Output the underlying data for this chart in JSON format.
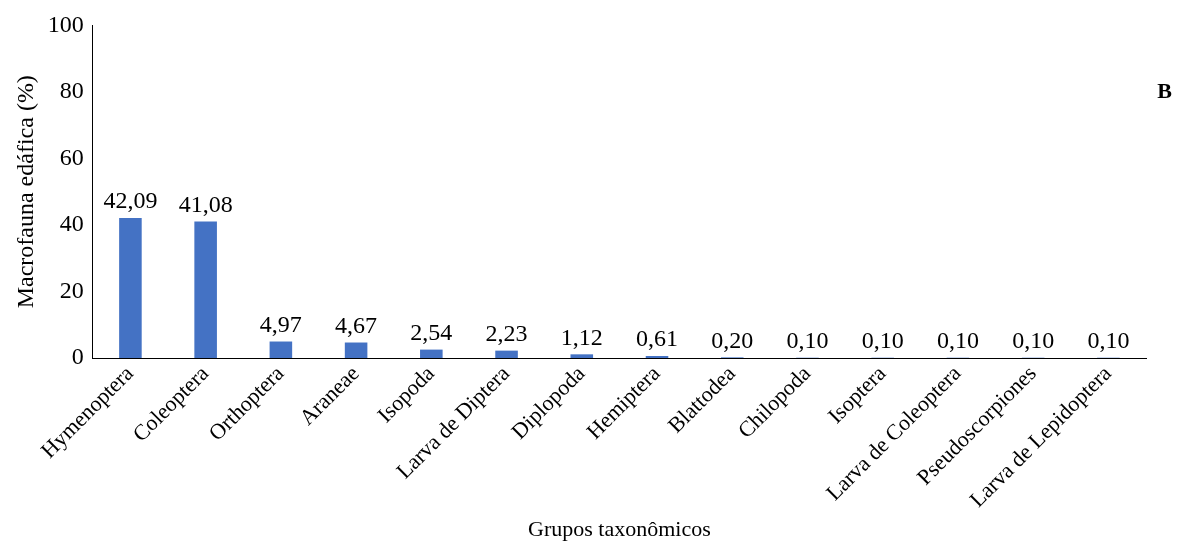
{
  "chart_data": {
    "type": "bar",
    "xlabel": "Grupos taxonômicos",
    "ylabel": "Macrofauna edáfica (%)",
    "annotations": [
      "B"
    ],
    "categories": [
      "Hymenoptera",
      "Coleoptera",
      "Orthoptera",
      "Araneae",
      "Isopoda",
      "Larva de Diptera",
      "Diplopoda",
      "Hemiptera",
      "Blattodea",
      "Chilopoda",
      "Isoptera",
      "Larva de Coleoptera",
      "Pseudoscorpiones",
      "Larva de Lepidoptera"
    ],
    "values": [
      42.09,
      41.08,
      4.97,
      4.67,
      2.54,
      2.23,
      1.12,
      0.61,
      0.2,
      0.1,
      0.1,
      0.1,
      0.1,
      0.1
    ],
    "value_labels": [
      "42,09",
      "41,08",
      "4,97",
      "4,67",
      "2,54",
      "2,23",
      "1,12",
      "0,61",
      "0,20",
      "0,10",
      "0,10",
      "0,10",
      "0,10",
      "0,10"
    ],
    "color": "#4472c4",
    "ylim": [
      0,
      100
    ],
    "yticks": [
      0,
      20,
      40,
      60,
      80,
      100
    ],
    "grid": false,
    "legend": false
  }
}
